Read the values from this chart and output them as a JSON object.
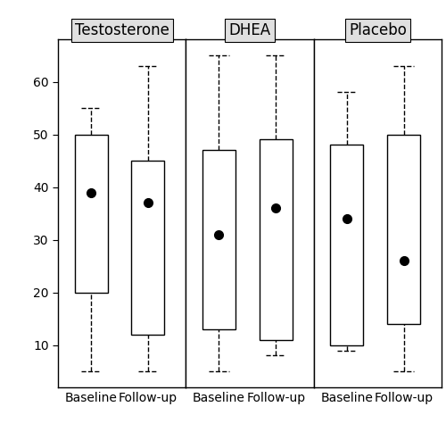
{
  "cohorts": [
    "Testosterone",
    "DHEA",
    "Placebo"
  ],
  "groups": [
    "Baseline",
    "Follow-up"
  ],
  "boxes": {
    "Testosterone": {
      "Baseline": {
        "whisker_low": 5,
        "q1": 20,
        "median": null,
        "q3": 50,
        "whisker_high": 55,
        "mean": 39
      },
      "Follow-up": {
        "whisker_low": 5,
        "q1": 12,
        "median": null,
        "q3": 45,
        "whisker_high": 63,
        "mean": 37
      }
    },
    "DHEA": {
      "Baseline": {
        "whisker_low": 5,
        "q1": 13,
        "median": null,
        "q3": 47,
        "whisker_high": 65,
        "mean": 31
      },
      "Follow-up": {
        "whisker_low": 8,
        "q1": 11,
        "median": null,
        "q3": 49,
        "whisker_high": 65,
        "mean": 36
      }
    },
    "Placebo": {
      "Baseline": {
        "whisker_low": 9,
        "q1": 10,
        "median": null,
        "q3": 48,
        "whisker_high": 58,
        "mean": 34
      },
      "Follow-up": {
        "whisker_low": 5,
        "q1": 14,
        "median": null,
        "q3": 50,
        "whisker_high": 63,
        "mean": 26
      }
    }
  },
  "ylim": [
    2,
    68
  ],
  "yticks": [
    10,
    20,
    30,
    40,
    50,
    60
  ],
  "x_positions": [
    1.0,
    2.2
  ],
  "xlim": [
    0.3,
    3.0
  ],
  "box_width": 0.7,
  "box_facecolor": "white",
  "box_edgecolor": "black",
  "whisker_linestyle": "--",
  "mean_marker": "o",
  "mean_markersize": 7,
  "mean_color": "black",
  "panel_label_facecolor": "#e0e0e0",
  "panel_border_color": "black",
  "title_fontsize": 12,
  "tick_fontsize": 10,
  "xlabel_fontsize": 10,
  "linewidth": 1.0,
  "cap_ratio": 0.6
}
